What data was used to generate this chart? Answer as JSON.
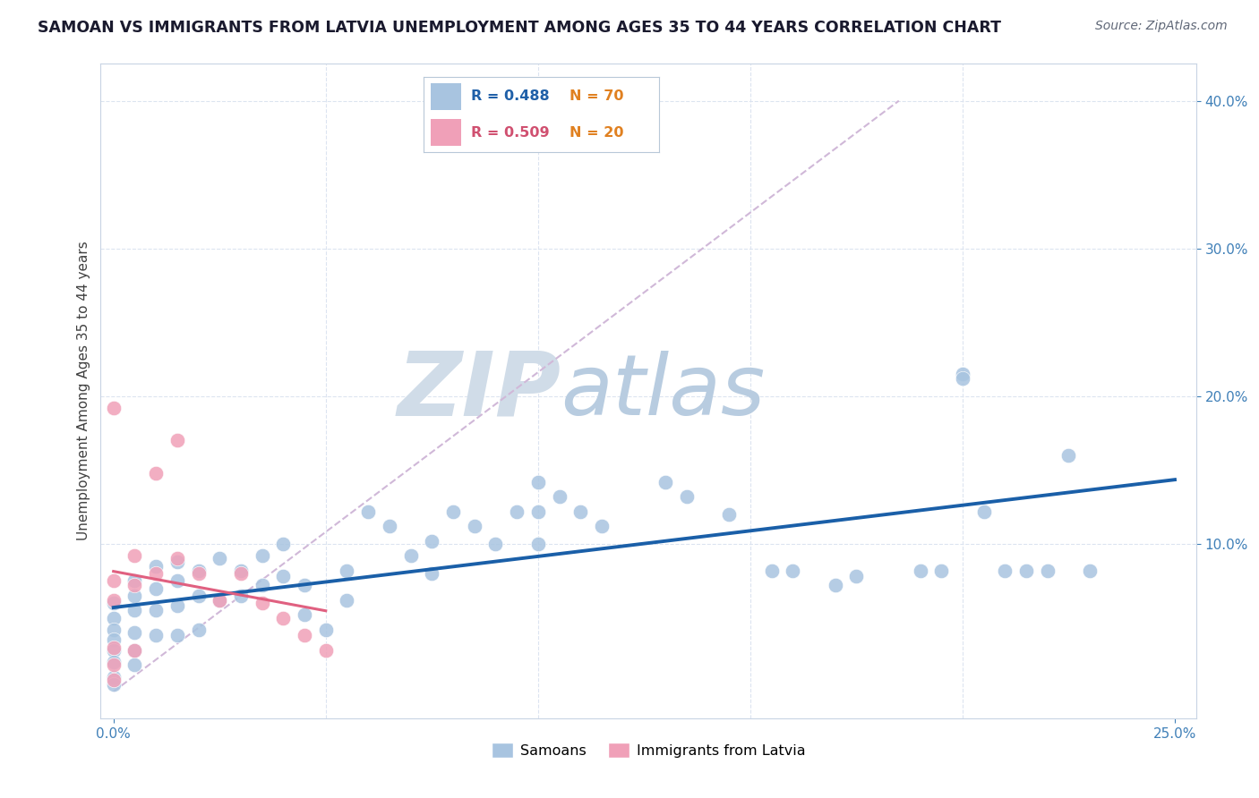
{
  "title": "SAMOAN VS IMMIGRANTS FROM LATVIA UNEMPLOYMENT AMONG AGES 35 TO 44 YEARS CORRELATION CHART",
  "source": "Source: ZipAtlas.com",
  "ylabel": "Unemployment Among Ages 35 to 44 years",
  "xlim": [
    -0.003,
    0.255
  ],
  "ylim": [
    -0.018,
    0.425
  ],
  "xticks": [
    0.0,
    0.25
  ],
  "yticks": [
    0.1,
    0.2,
    0.3,
    0.4
  ],
  "samoans_R": 0.488,
  "samoans_N": 70,
  "latvia_R": 0.509,
  "latvia_N": 20,
  "samoans_color": "#a8c4e0",
  "latvia_color": "#f0a0b8",
  "samoans_line_color": "#1a5fa8",
  "latvia_line_color": "#e06080",
  "diag_line_color": "#d0b8d8",
  "watermark_zip_color": "#d0dce8",
  "watermark_atlas_color": "#b8cce0",
  "tick_color": "#4080b8",
  "grid_color": "#dce4f0",
  "legend_entries": [
    "Samoans",
    "Immigrants from Latvia"
  ],
  "samoans_x": [
    0.0,
    0.0,
    0.0,
    0.0,
    0.0,
    0.0,
    0.0,
    0.0,
    0.005,
    0.005,
    0.005,
    0.005,
    0.005,
    0.005,
    0.01,
    0.01,
    0.01,
    0.01,
    0.015,
    0.015,
    0.015,
    0.015,
    0.02,
    0.02,
    0.02,
    0.025,
    0.025,
    0.03,
    0.03,
    0.035,
    0.035,
    0.04,
    0.04,
    0.045,
    0.045,
    0.05,
    0.055,
    0.055,
    0.06,
    0.065,
    0.07,
    0.075,
    0.075,
    0.08,
    0.085,
    0.09,
    0.095,
    0.1,
    0.1,
    0.1,
    0.105,
    0.11,
    0.115,
    0.13,
    0.135,
    0.145,
    0.155,
    0.16,
    0.17,
    0.175,
    0.19,
    0.195,
    0.2,
    0.2,
    0.205,
    0.21,
    0.215,
    0.22,
    0.225,
    0.23
  ],
  "samoans_y": [
    0.06,
    0.05,
    0.042,
    0.035,
    0.028,
    0.02,
    0.01,
    0.005,
    0.075,
    0.065,
    0.055,
    0.04,
    0.028,
    0.018,
    0.085,
    0.07,
    0.055,
    0.038,
    0.088,
    0.075,
    0.058,
    0.038,
    0.082,
    0.065,
    0.042,
    0.09,
    0.062,
    0.082,
    0.065,
    0.092,
    0.072,
    0.1,
    0.078,
    0.072,
    0.052,
    0.042,
    0.082,
    0.062,
    0.122,
    0.112,
    0.092,
    0.102,
    0.08,
    0.122,
    0.112,
    0.1,
    0.122,
    0.142,
    0.122,
    0.1,
    0.132,
    0.122,
    0.112,
    0.142,
    0.132,
    0.12,
    0.082,
    0.082,
    0.072,
    0.078,
    0.082,
    0.082,
    0.215,
    0.212,
    0.122,
    0.082,
    0.082,
    0.082,
    0.16,
    0.082
  ],
  "latvia_x": [
    0.0,
    0.0,
    0.0,
    0.0,
    0.0,
    0.0,
    0.005,
    0.005,
    0.005,
    0.01,
    0.01,
    0.015,
    0.015,
    0.02,
    0.025,
    0.03,
    0.035,
    0.04,
    0.045,
    0.05
  ],
  "latvia_y": [
    0.192,
    0.075,
    0.062,
    0.03,
    0.018,
    0.008,
    0.092,
    0.072,
    0.028,
    0.148,
    0.08,
    0.17,
    0.09,
    0.08,
    0.062,
    0.08,
    0.06,
    0.05,
    0.038,
    0.028
  ],
  "samoans_trendline_x": [
    0.0,
    0.25
  ],
  "latvia_trendline_x": [
    0.0,
    0.05
  ],
  "diag_line_x": [
    0.0,
    0.185
  ],
  "diag_line_y": [
    0.0,
    0.4
  ]
}
